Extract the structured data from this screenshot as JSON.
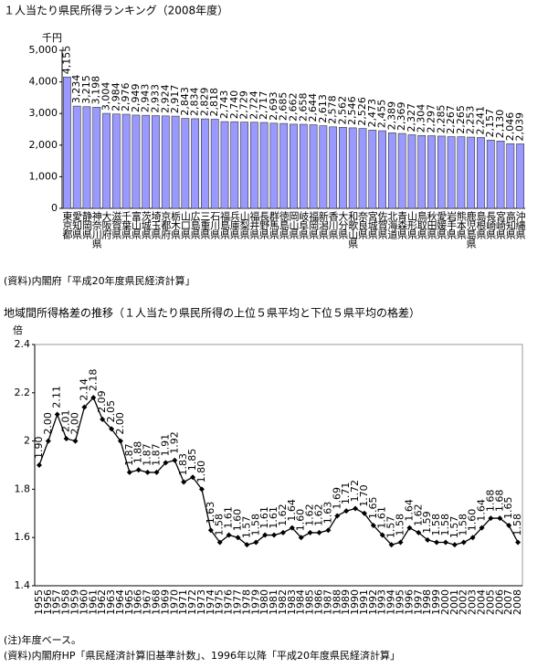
{
  "chart_data": [
    {
      "type": "bar",
      "title": "１人当たり県民所得ランキング（2008年度）",
      "ylabel": "千円",
      "categories": [
        "東京都",
        "愛知県",
        "静岡県",
        "神奈川県",
        "大阪府",
        "滋賀県",
        "千葉県",
        "富山県",
        "茨城県",
        "埼玉県",
        "京都府",
        "栃木県",
        "山口県",
        "広島県",
        "三重県",
        "石川県",
        "福島県",
        "兵庫県",
        "山梨県",
        "福井県",
        "長野県",
        "群馬県",
        "徳島県",
        "岡山県",
        "岐阜県",
        "福岡県",
        "新潟県",
        "香川県",
        "大分県",
        "和歌山県",
        "奈良県",
        "宮城県",
        "佐賀県",
        "北海道",
        "青森県",
        "山形県",
        "鳥取県",
        "秋田県",
        "愛媛県",
        "岩手県",
        "熊本県",
        "鹿児島県",
        "島根県",
        "長崎県",
        "宮崎県",
        "高知県",
        "沖縄県"
      ],
      "values": [
        4155,
        3234,
        3215,
        3198,
        3004,
        2984,
        2976,
        2949,
        2943,
        2933,
        2924,
        2917,
        2843,
        2834,
        2829,
        2818,
        2743,
        2740,
        2729,
        2724,
        2717,
        2693,
        2685,
        2662,
        2658,
        2644,
        2613,
        2578,
        2562,
        2546,
        2526,
        2473,
        2455,
        2389,
        2369,
        2327,
        2304,
        2297,
        2285,
        2267,
        2265,
        2253,
        2241,
        2157,
        2130,
        2046,
        2039
      ],
      "value_labels": [
        "4,155",
        "3,234",
        "3,215",
        "3,198",
        "3,004",
        "2,984",
        "2,976",
        "2,949",
        "2,943",
        "2,933",
        "2,924",
        "2,917",
        "2,843",
        "2,834",
        "2,829",
        "2,818",
        "2,743",
        "2,740",
        "2,729",
        "2,724",
        "2,717",
        "2,693",
        "2,685",
        "2,662",
        "2,658",
        "2,644",
        "2,613",
        "2,578",
        "2,562",
        "2,546",
        "2,526",
        "2,473",
        "2,455",
        "2,389",
        "2,369",
        "2,327",
        "2,304",
        "2,297",
        "2,285",
        "2,267",
        "2,265",
        "2,253",
        "2,241",
        "2,157",
        "2,130",
        "2,046",
        "2,039"
      ],
      "color": "#9999ff",
      "ylim": [
        0,
        5000
      ],
      "yticks": [
        0,
        {
          "value": 1000,
          "label": "1,000"
        },
        {
          "value": 2000,
          "label": "2,000"
        },
        {
          "value": 3000,
          "label": "3,000"
        },
        {
          "value": 4000,
          "label": "4,000"
        },
        {
          "value": 5000,
          "label": "5,000"
        }
      ],
      "grid": false,
      "source": "(資料)内閣府「平成20年度県民経済計算」"
    },
    {
      "type": "line",
      "title": "地域間所得格差の推移（１人当たり県民所得の上位５県平均と下位５県平均の格差）",
      "ylabel": "倍",
      "categories": [
        "1955",
        "1956",
        "1957",
        "1958",
        "1959",
        "1960",
        "1961",
        "1962",
        "1963",
        "1964",
        "1965",
        "1966",
        "1967",
        "1968",
        "1969",
        "1970",
        "1971",
        "1972",
        "1973",
        "1974",
        "1975",
        "1976",
        "1977",
        "1978",
        "1979",
        "1980",
        "1981",
        "1982",
        "1983",
        "1984",
        "1985",
        "1986",
        "1987",
        "1988",
        "1989",
        "1990",
        "1991",
        "1992",
        "1993",
        "1994",
        "1995",
        "1996",
        "1997",
        "1998",
        "1999",
        "2000",
        "2001",
        "2002",
        "2003",
        "2004",
        "2005",
        "2006",
        "2007",
        "2008"
      ],
      "values": [
        1.9,
        2,
        2.11,
        2.01,
        2,
        2.14,
        2.18,
        2.09,
        2.05,
        2,
        1.87,
        1.88,
        1.87,
        1.87,
        1.91,
        1.92,
        1.83,
        1.85,
        1.8,
        1.63,
        1.58,
        1.61,
        1.6,
        1.57,
        1.58,
        1.61,
        1.61,
        1.62,
        1.64,
        1.6,
        1.62,
        1.62,
        1.63,
        1.69,
        1.71,
        1.72,
        1.7,
        1.65,
        1.61,
        1.57,
        1.58,
        1.64,
        1.62,
        1.59,
        1.58,
        1.58,
        1.57,
        1.58,
        1.6,
        1.64,
        1.68,
        1.68,
        1.65,
        1.58
      ],
      "value_labels": [
        "1.90",
        "2.00",
        "2.11",
        "2.01",
        "2.00",
        "2.14",
        "2.18",
        "2.09",
        "2.05",
        "2.00",
        "1.87",
        "1.88",
        "1.87",
        "1.87",
        "1.91",
        "1.92",
        "1.83",
        "1.85",
        "1.80",
        "1.63",
        "1.58",
        "1.61",
        "1.60",
        "1.57",
        "1.58",
        "1.61",
        "1.61",
        "1.62",
        "1.64",
        "1.60",
        "1.62",
        "1.62",
        "1.63",
        "1.69",
        "1.71",
        "1.72",
        "1.70",
        "1.65",
        "1.61",
        "1.57",
        "1.58",
        "1.64",
        "1.62",
        "1.59",
        "1.58",
        "1.58",
        "1.57",
        "1.58",
        "1.60",
        "1.64",
        "1.68",
        "1.68",
        "1.65",
        "1.58"
      ],
      "color": "#000000",
      "ylim": [
        1.4,
        2.4
      ],
      "yticks": [
        1.4,
        1.6,
        1.8,
        2,
        2.2,
        2.4
      ],
      "grid": false,
      "note": "(注)年度ベース。",
      "source": "(資料)内閣府HP「県民経済計算旧基準計数」、1996年以降「平成20年度県民経済計算」"
    }
  ]
}
